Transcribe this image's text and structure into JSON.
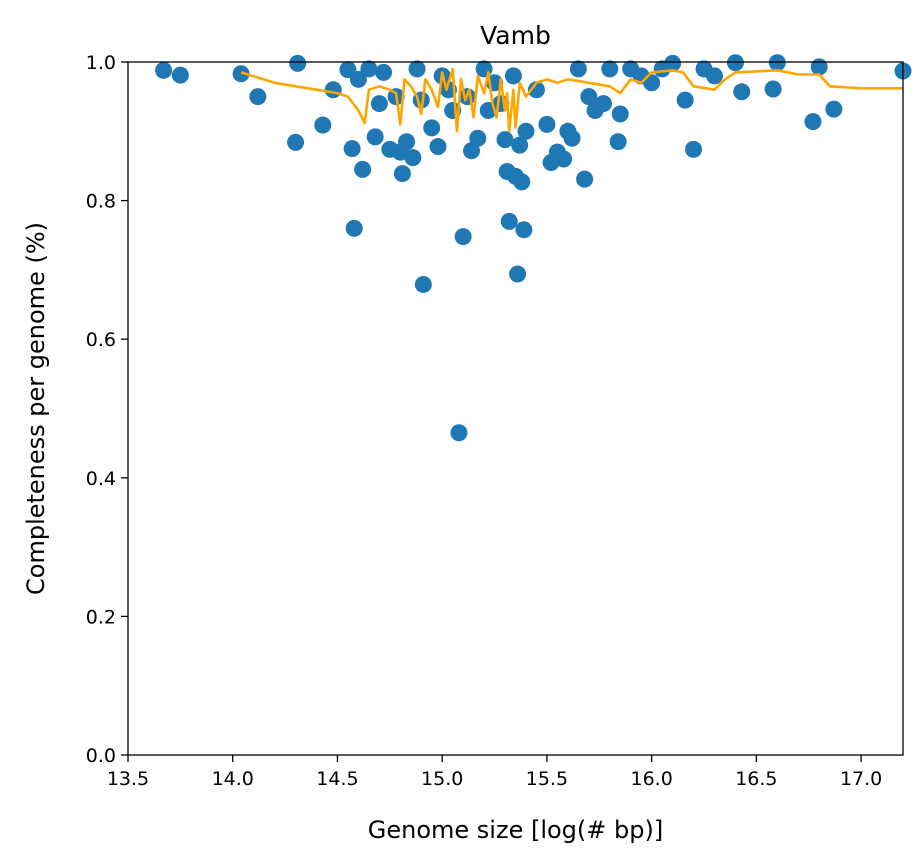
{
  "chart_data": {
    "type": "scatter",
    "title": "Vamb",
    "xlabel": "Genome size [log(# bp)]",
    "ylabel": "Completeness per genome (%)",
    "xlim": [
      13.5,
      17.2
    ],
    "ylim": [
      0.0,
      1.0
    ],
    "xticks": [
      "13.5",
      "14.0",
      "14.5",
      "15.0",
      "15.5",
      "16.0",
      "16.5",
      "17.0"
    ],
    "yticks": [
      "0.0",
      "0.2",
      "0.4",
      "0.6",
      "0.8",
      "1.0"
    ],
    "grid": false,
    "legend": "none",
    "colors": {
      "points": "#1f77b4",
      "line": "#ffa500"
    },
    "series": [
      {
        "type": "scatter",
        "points": [
          [
            13.67,
            0.988
          ],
          [
            13.75,
            0.981
          ],
          [
            14.04,
            0.983
          ],
          [
            14.12,
            0.95
          ],
          [
            14.3,
            0.884
          ],
          [
            14.31,
            0.998
          ],
          [
            14.43,
            0.909
          ],
          [
            14.48,
            0.96
          ],
          [
            14.55,
            0.989
          ],
          [
            14.57,
            0.875
          ],
          [
            14.58,
            0.76
          ],
          [
            14.6,
            0.975
          ],
          [
            14.62,
            0.845
          ],
          [
            14.65,
            0.99
          ],
          [
            14.68,
            0.892
          ],
          [
            14.7,
            0.94
          ],
          [
            14.72,
            0.985
          ],
          [
            14.75,
            0.874
          ],
          [
            14.78,
            0.95
          ],
          [
            14.8,
            0.87
          ],
          [
            14.81,
            0.839
          ],
          [
            14.83,
            0.885
          ],
          [
            14.86,
            0.862
          ],
          [
            14.88,
            0.99
          ],
          [
            14.9,
            0.945
          ],
          [
            14.91,
            0.679
          ],
          [
            14.95,
            0.905
          ],
          [
            14.98,
            0.878
          ],
          [
            15.0,
            0.98
          ],
          [
            15.03,
            0.96
          ],
          [
            15.05,
            0.93
          ],
          [
            15.08,
            0.465
          ],
          [
            15.1,
            0.748
          ],
          [
            15.12,
            0.95
          ],
          [
            15.14,
            0.872
          ],
          [
            15.17,
            0.89
          ],
          [
            15.2,
            0.99
          ],
          [
            15.22,
            0.93
          ],
          [
            15.25,
            0.97
          ],
          [
            15.28,
            0.94
          ],
          [
            15.3,
            0.888
          ],
          [
            15.31,
            0.842
          ],
          [
            15.32,
            0.77
          ],
          [
            15.34,
            0.98
          ],
          [
            15.35,
            0.835
          ],
          [
            15.36,
            0.694
          ],
          [
            15.37,
            0.88
          ],
          [
            15.38,
            0.827
          ],
          [
            15.39,
            0.758
          ],
          [
            15.4,
            0.9
          ],
          [
            15.45,
            0.96
          ],
          [
            15.5,
            0.91
          ],
          [
            15.52,
            0.855
          ],
          [
            15.55,
            0.87
          ],
          [
            15.58,
            0.86
          ],
          [
            15.6,
            0.9
          ],
          [
            15.62,
            0.89
          ],
          [
            15.65,
            0.99
          ],
          [
            15.68,
            0.831
          ],
          [
            15.7,
            0.95
          ],
          [
            15.73,
            0.93
          ],
          [
            15.77,
            0.94
          ],
          [
            15.8,
            0.99
          ],
          [
            15.84,
            0.885
          ],
          [
            15.85,
            0.925
          ],
          [
            15.9,
            0.99
          ],
          [
            15.95,
            0.98
          ],
          [
            16.0,
            0.97
          ],
          [
            16.05,
            0.99
          ],
          [
            16.1,
            0.998
          ],
          [
            16.16,
            0.945
          ],
          [
            16.2,
            0.874
          ],
          [
            16.25,
            0.99
          ],
          [
            16.3,
            0.98
          ],
          [
            16.4,
            0.999
          ],
          [
            16.43,
            0.957
          ],
          [
            16.58,
            0.961
          ],
          [
            16.6,
            0.999
          ],
          [
            16.77,
            0.914
          ],
          [
            16.8,
            0.993
          ],
          [
            16.87,
            0.932
          ],
          [
            17.2,
            0.987
          ]
        ]
      },
      {
        "type": "line",
        "points": [
          [
            14.04,
            0.985
          ],
          [
            14.2,
            0.97
          ],
          [
            14.4,
            0.96
          ],
          [
            14.5,
            0.955
          ],
          [
            14.55,
            0.95
          ],
          [
            14.6,
            0.93
          ],
          [
            14.63,
            0.912
          ],
          [
            14.65,
            0.96
          ],
          [
            14.7,
            0.965
          ],
          [
            14.75,
            0.96
          ],
          [
            14.78,
            0.955
          ],
          [
            14.8,
            0.91
          ],
          [
            14.82,
            0.975
          ],
          [
            14.85,
            0.965
          ],
          [
            14.88,
            0.95
          ],
          [
            14.9,
            0.925
          ],
          [
            14.92,
            0.975
          ],
          [
            14.95,
            0.96
          ],
          [
            14.98,
            0.935
          ],
          [
            15.0,
            0.985
          ],
          [
            15.02,
            0.96
          ],
          [
            15.05,
            0.99
          ],
          [
            15.07,
            0.9
          ],
          [
            15.09,
            0.975
          ],
          [
            15.11,
            0.945
          ],
          [
            15.13,
            0.96
          ],
          [
            15.15,
            0.92
          ],
          [
            15.17,
            0.98
          ],
          [
            15.2,
            0.955
          ],
          [
            15.22,
            0.985
          ],
          [
            15.24,
            0.94
          ],
          [
            15.26,
            0.92
          ],
          [
            15.28,
            0.975
          ],
          [
            15.3,
            0.93
          ],
          [
            15.31,
            0.955
          ],
          [
            15.32,
            0.9
          ],
          [
            15.34,
            0.96
          ],
          [
            15.35,
            0.905
          ],
          [
            15.37,
            0.97
          ],
          [
            15.4,
            0.95
          ],
          [
            15.45,
            0.97
          ],
          [
            15.5,
            0.975
          ],
          [
            15.55,
            0.97
          ],
          [
            15.6,
            0.975
          ],
          [
            15.7,
            0.97
          ],
          [
            15.8,
            0.965
          ],
          [
            15.85,
            0.955
          ],
          [
            15.9,
            0.975
          ],
          [
            15.95,
            0.97
          ],
          [
            16.0,
            0.985
          ],
          [
            16.1,
            0.988
          ],
          [
            16.15,
            0.985
          ],
          [
            16.2,
            0.965
          ],
          [
            16.3,
            0.96
          ],
          [
            16.35,
            0.975
          ],
          [
            16.4,
            0.985
          ],
          [
            16.6,
            0.988
          ],
          [
            16.7,
            0.982
          ],
          [
            16.8,
            0.982
          ],
          [
            16.85,
            0.965
          ],
          [
            17.0,
            0.962
          ],
          [
            17.2,
            0.962
          ]
        ]
      }
    ]
  }
}
